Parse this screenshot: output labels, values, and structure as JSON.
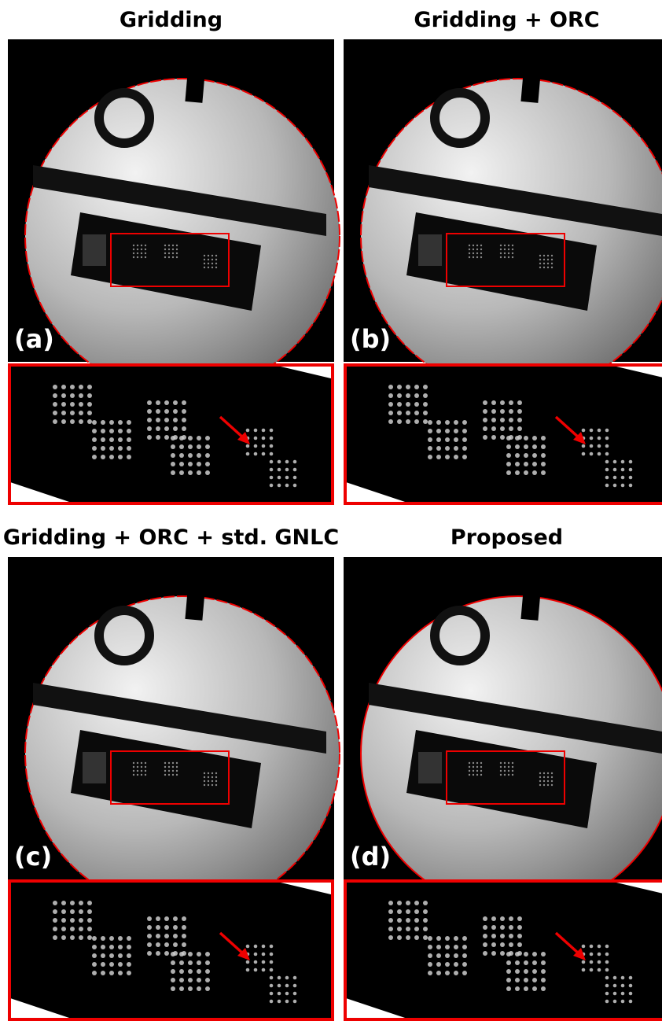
{
  "panels": [
    {
      "title": "Gridding",
      "label": "(a)"
    },
    {
      "title": "Gridding + ORC",
      "label": "(b)"
    },
    {
      "title": "Gridding + ORC + std. GNLC",
      "label": "(c)"
    },
    {
      "title": "Proposed",
      "label": "(d)"
    }
  ]
}
